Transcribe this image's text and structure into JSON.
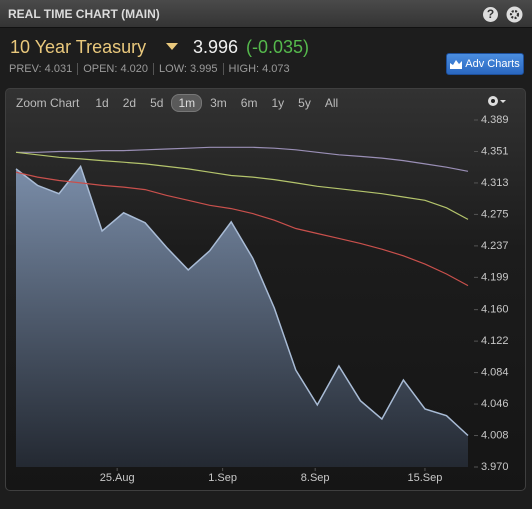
{
  "header": {
    "title": "REAL TIME CHART (MAIN)",
    "help": "?"
  },
  "quote": {
    "name": "10 Year Treasury",
    "price": "3.996",
    "change": "(-0.035)",
    "stats": [
      "PREV: 4.031",
      "OPEN: 4.020",
      "LOW: 3.995",
      "HIGH: 4.073"
    ],
    "button": "Adv Charts"
  },
  "zoom": {
    "label": "Zoom Chart",
    "ranges": [
      "1d",
      "2d",
      "5d",
      "1m",
      "3m",
      "6m",
      "1y",
      "5y",
      "All"
    ],
    "selected": "1m"
  },
  "chart_data": {
    "type": "line",
    "x": [
      0,
      1,
      2,
      3,
      4,
      5,
      6,
      7,
      8,
      9,
      10,
      11,
      12,
      13,
      14,
      15,
      16,
      17,
      18,
      19,
      20,
      21
    ],
    "xlim": [
      0,
      21
    ],
    "xticks": [
      {
        "value": 4.7,
        "label": "25.Aug"
      },
      {
        "value": 9.6,
        "label": "1.Sep"
      },
      {
        "value": 13.9,
        "label": "8.Sep"
      },
      {
        "value": 19,
        "label": "15.Sep"
      }
    ],
    "ylim": [
      3.97,
      4.389
    ],
    "yticks": [
      4.389,
      4.351,
      4.313,
      4.275,
      4.237,
      4.199,
      {
        "value": 4.16,
        "label": "4.160"
      },
      4.122,
      4.084,
      4.046,
      4.008,
      {
        "value": 3.97,
        "label": "3.970"
      }
    ],
    "series": [
      {
        "color": "#a9bcd6",
        "area": true,
        "values": [
          4.33,
          4.31,
          4.3,
          4.333,
          4.255,
          4.277,
          4.265,
          4.235,
          4.208,
          4.231,
          4.266,
          4.222,
          4.162,
          4.087,
          4.045,
          4.092,
          4.05,
          4.028,
          4.075,
          4.04,
          4.032,
          4.008
        ]
      },
      {
        "color": "#9a8fb6",
        "values": [
          4.35,
          4.35,
          4.351,
          4.351,
          4.352,
          4.352,
          4.353,
          4.354,
          4.355,
          4.356,
          4.356,
          4.356,
          4.355,
          4.353,
          4.35,
          4.347,
          4.345,
          4.343,
          4.34,
          4.336,
          4.332,
          4.327
        ]
      },
      {
        "color": "#b4c46c",
        "values": [
          4.35,
          4.347,
          4.344,
          4.342,
          4.34,
          4.338,
          4.336,
          4.333,
          4.33,
          4.326,
          4.322,
          4.32,
          4.317,
          4.313,
          4.309,
          4.306,
          4.303,
          4.3,
          4.296,
          4.292,
          4.283,
          4.269
        ]
      },
      {
        "color": "#c9504c",
        "values": [
          4.326,
          4.32,
          4.316,
          4.313,
          4.31,
          4.308,
          4.305,
          4.298,
          4.292,
          4.286,
          4.282,
          4.276,
          4.268,
          4.258,
          4.252,
          4.246,
          4.24,
          4.233,
          4.225,
          4.215,
          4.203,
          4.189
        ]
      }
    ]
  }
}
